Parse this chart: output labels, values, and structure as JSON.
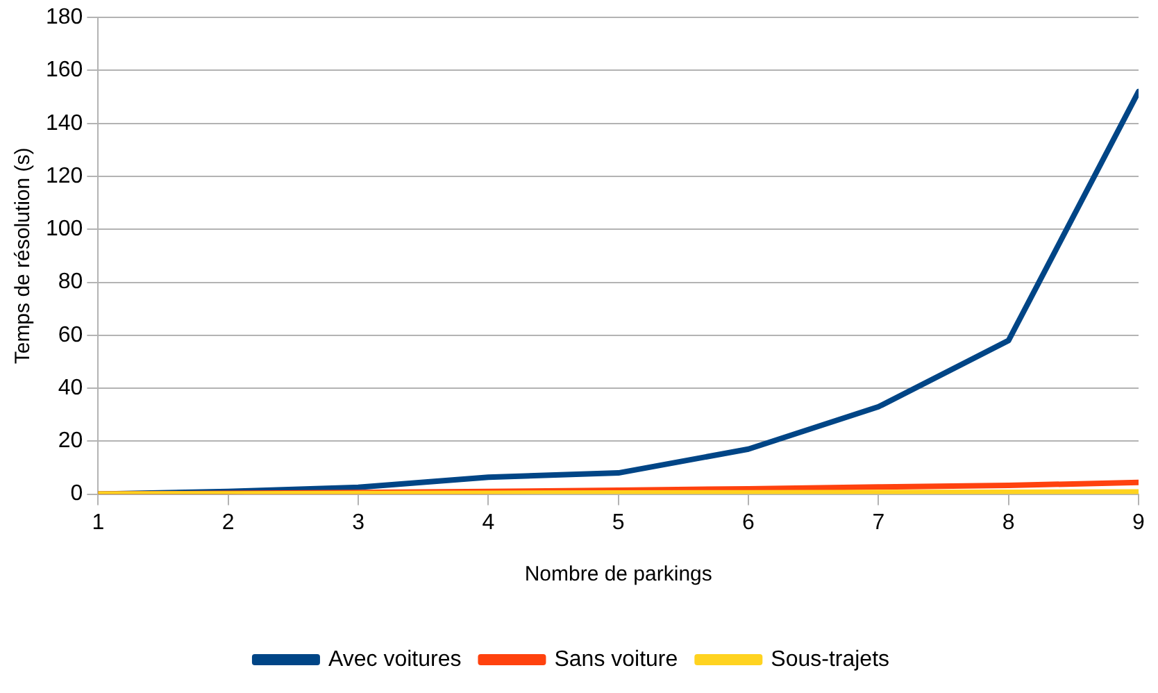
{
  "chart_data": {
    "type": "line",
    "xlabel": "Nombre de parkings",
    "ylabel": "Temps de résolution (s)",
    "x": [
      1,
      2,
      3,
      4,
      5,
      6,
      7,
      8,
      9
    ],
    "series": [
      {
        "name": "Avec voitures",
        "color": "#004586",
        "values": [
          0,
          1,
          2.6,
          6.4,
          8,
          17,
          33,
          58,
          152
        ]
      },
      {
        "name": "Sans voiture",
        "color": "#ff420e",
        "values": [
          0,
          0.3,
          0.6,
          1,
          1.5,
          2,
          2.7,
          3.3,
          4.4
        ]
      },
      {
        "name": "Sous-trajets",
        "color": "#ffd320",
        "values": [
          0,
          0.1,
          0.2,
          0.3,
          0.4,
          0.5,
          0.6,
          0.7,
          0.8
        ]
      }
    ],
    "xlim": [
      1,
      9
    ],
    "xticks": [
      1,
      2,
      3,
      4,
      5,
      6,
      7,
      8,
      9
    ],
    "ylim": [
      0,
      180
    ],
    "yticks": [
      0,
      20,
      40,
      60,
      80,
      100,
      120,
      140,
      160,
      180
    ],
    "grid": "y",
    "legend": "bottom",
    "marker": "none",
    "line_style": "solid"
  }
}
